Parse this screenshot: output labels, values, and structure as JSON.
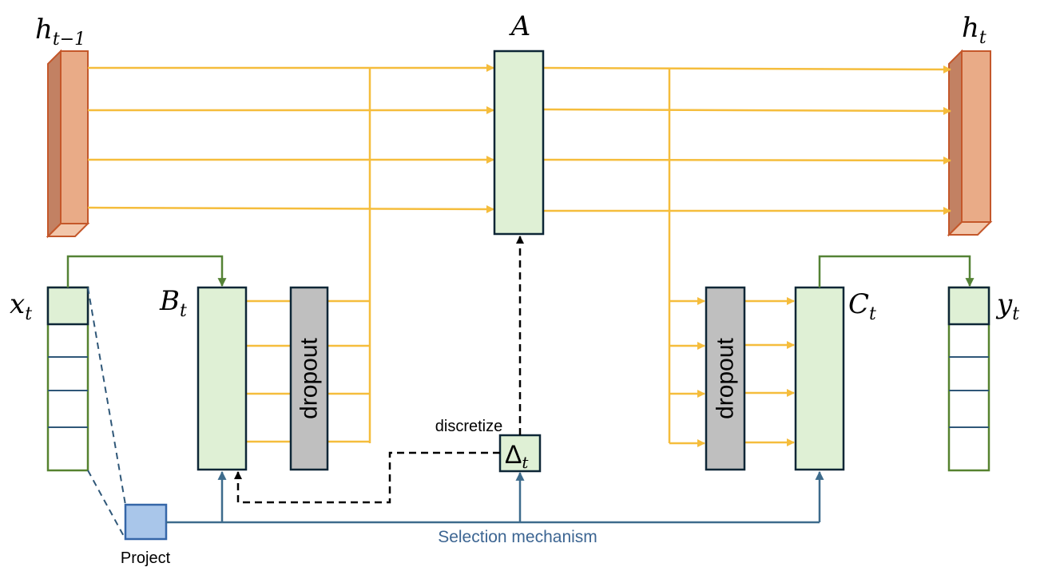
{
  "labels": {
    "h_prev": "h",
    "h_prev_sub": "t−1",
    "a": "A",
    "h_t": "h",
    "h_t_sub": "t",
    "x_t": "x",
    "x_t_sub": "t",
    "b_t": "B",
    "b_t_sub": "t",
    "c_t": "C",
    "c_t_sub": "t",
    "y_t": "y",
    "y_t_sub": "t",
    "delta": "Δ",
    "delta_sub": "t",
    "dropout_left": "dropout",
    "dropout_right": "dropout",
    "discretize": "discretize",
    "project": "Project",
    "selection": "Selection mechanism"
  },
  "colors": {
    "state_fill": "#e9ab87",
    "state_dark": "#c28163",
    "state_light": "#f2c6aa",
    "state_stroke": "#c4572a",
    "matrix_fill": "#dff0d5",
    "matrix_stroke": "#0d2636",
    "vector_stroke": "#56822f",
    "vector_divider": "#2f5778",
    "dropout_fill": "#bfbfbf",
    "yellow_arrow": "#f5bd3c",
    "green_arrow": "#548235",
    "blue_arrow": "#3d6b8c",
    "project_fill": "#a9c6ea",
    "project_stroke": "#3566a8",
    "selection_text": "#3c6592",
    "dashed": "#000000"
  }
}
